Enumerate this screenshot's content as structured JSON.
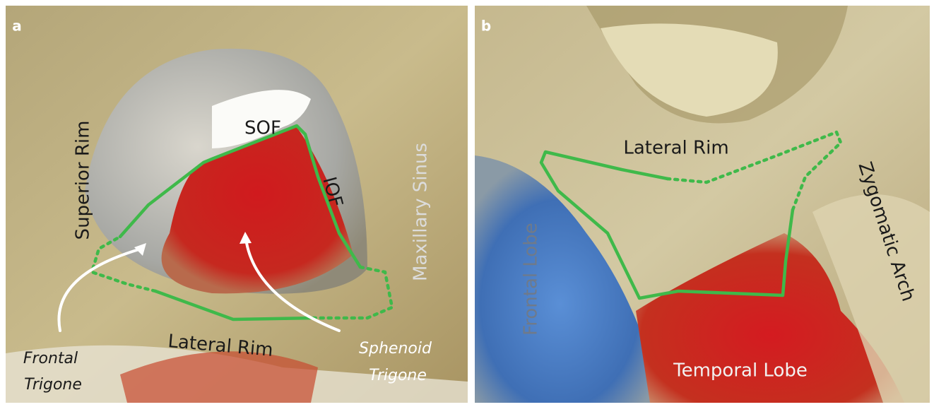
{
  "panel_a": {
    "letter": "a",
    "superior_rim": "Superior Rim",
    "sof": "SOF",
    "iof": "IOF",
    "maxillary_sinus": "Maxillary Sinus",
    "lateral_rim": "Lateral Rim",
    "frontal_trigone": [
      "Frontal",
      "Trigone"
    ],
    "sphenoid_trigone": [
      "Sphenoid",
      "Trigone"
    ]
  },
  "panel_b": {
    "letter": "b",
    "lateral_rim": "Lateral Rim",
    "zygomatic_arch": "Zygomatic Arch",
    "frontal_lobe": "Frontal Lobe",
    "temporal_lobe": "Temporal Lobe"
  }
}
